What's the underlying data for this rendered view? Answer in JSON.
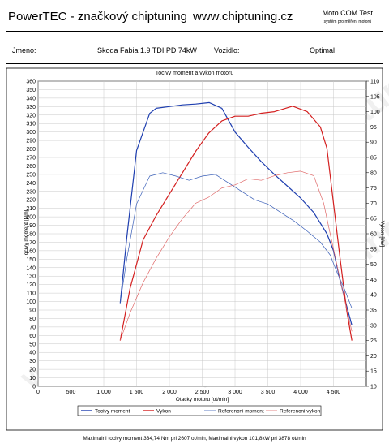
{
  "header": {
    "brand": "PowerTEC - značkový chiptuning",
    "url": "www.chiptuning.cz",
    "test_title": "Moto COM Test",
    "test_subtitle": "systém pro měření motorů"
  },
  "info": {
    "name_label": "Jmeno:",
    "vehicle": "Skoda Fabia 1.9 TDI PD 74kW",
    "driver_label": "Vozidlo:",
    "variant": "Optimal"
  },
  "watermark": "www.chiptuning.cz",
  "chart_data": {
    "type": "line",
    "title": "Tocivy moment a vykon motoru",
    "xlabel": "Otacky motoru [ot/min]",
    "ylabel_left": "Tocivy moment [Nm]",
    "ylabel_right": "Vykon [kW]",
    "xlim": [
      0,
      5000
    ],
    "ylim_left": [
      0,
      360
    ],
    "ylim_right": [
      10,
      110
    ],
    "x_ticks": [
      0,
      500,
      1000,
      1500,
      2000,
      2500,
      3000,
      3500,
      4000,
      4500
    ],
    "x_tick_labels": [
      "0",
      "500",
      "1 000",
      "1 500",
      "2 000",
      "2 500",
      "3 000",
      "3 500",
      "4 000",
      "4 500"
    ],
    "y_left_ticks": [
      0,
      10,
      20,
      30,
      40,
      50,
      60,
      70,
      80,
      90,
      100,
      110,
      120,
      130,
      140,
      150,
      160,
      170,
      180,
      190,
      200,
      210,
      220,
      230,
      240,
      250,
      260,
      270,
      280,
      290,
      300,
      310,
      320,
      330,
      340,
      350,
      360
    ],
    "y_right_ticks": [
      10,
      15,
      20,
      25,
      30,
      35,
      40,
      45,
      50,
      55,
      60,
      65,
      70,
      75,
      80,
      85,
      90,
      95,
      100,
      105,
      110
    ],
    "grid": true,
    "legend_position": "bottom",
    "series": [
      {
        "name": "Tocivy moment",
        "axis": "left",
        "color": "#1f3fb0",
        "style": "bold",
        "x": [
          1250,
          1350,
          1500,
          1700,
          1800,
          2000,
          2200,
          2400,
          2607,
          2800,
          3000,
          3200,
          3400,
          3600,
          3800,
          4000,
          4200,
          4400,
          4500,
          4600,
          4700,
          4780
        ],
        "y": [
          98,
          175,
          278,
          322,
          328,
          330,
          332,
          333,
          334.7,
          328,
          300,
          282,
          265,
          250,
          236,
          222,
          205,
          180,
          160,
          125,
          95,
          72
        ]
      },
      {
        "name": "Vykon",
        "axis": "right",
        "color": "#d42020",
        "style": "bold",
        "x": [
          1250,
          1400,
          1600,
          1800,
          2000,
          2200,
          2400,
          2600,
          2800,
          3000,
          3200,
          3400,
          3600,
          3878,
          4100,
          4300,
          4400,
          4500,
          4600,
          4700,
          4780
        ],
        "y": [
          25,
          42,
          58,
          66,
          73,
          80,
          87,
          93,
          97,
          98.5,
          98.5,
          99.5,
          100,
          101.8,
          100,
          95,
          88,
          70,
          52,
          35,
          25
        ]
      },
      {
        "name": "Referencni moment",
        "axis": "left",
        "color": "#3a5fb8",
        "style": "thin",
        "x": [
          1250,
          1350,
          1500,
          1700,
          1900,
          2100,
          2300,
          2500,
          2700,
          2900,
          3100,
          3300,
          3500,
          3700,
          3900,
          4100,
          4300,
          4450,
          4550,
          4650,
          4780
        ],
        "y": [
          98,
          150,
          215,
          248,
          252,
          248,
          243,
          248,
          250,
          240,
          230,
          220,
          215,
          205,
          195,
          183,
          170,
          155,
          135,
          118,
          92
        ]
      },
      {
        "name": "Referencni vykon",
        "axis": "right",
        "color": "#e06a6a",
        "style": "thin",
        "x": [
          1250,
          1400,
          1600,
          1800,
          2000,
          2200,
          2400,
          2600,
          2800,
          3000,
          3200,
          3400,
          3600,
          3800,
          4000,
          4200,
          4350,
          4450,
          4550,
          4650,
          4780
        ],
        "y": [
          25,
          34,
          44,
          52,
          59,
          65,
          70,
          72,
          75,
          76,
          78,
          77.5,
          79,
          80,
          80.5,
          79,
          70,
          60,
          50,
          40,
          28
        ]
      }
    ],
    "footer": "Maximalni tocivy moment 334,74 Nm pri 2607 ot/min,  Maximalni vykon 101,8kW pri 3878 ot/min"
  }
}
